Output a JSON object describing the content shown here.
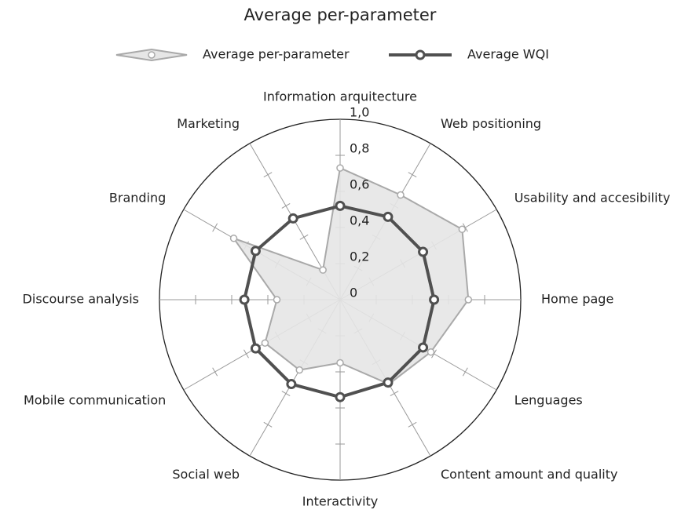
{
  "chart_data": {
    "type": "radar",
    "title": "Average per-parameter",
    "categories": [
      "Information arquitecture",
      "Web positioning",
      "Usability and accesibility",
      "Home page",
      "Lenguages",
      "Content amount and quality",
      "Interactivity",
      "Social web",
      "Mobile communication",
      "Discourse analysis",
      "Branding",
      "Marketing"
    ],
    "series": [
      {
        "name": "Average per-parameter",
        "color": "#a9a9a9",
        "fill": "#e6e6e6",
        "values": [
          0.73,
          0.67,
          0.78,
          0.71,
          0.58,
          0.54,
          0.35,
          0.45,
          0.48,
          0.35,
          0.68,
          0.19
        ]
      },
      {
        "name": "Average WQI",
        "color": "#505050",
        "values": [
          0.52,
          0.53,
          0.53,
          0.52,
          0.53,
          0.53,
          0.54,
          0.54,
          0.54,
          0.53,
          0.54,
          0.52
        ]
      }
    ],
    "ylim": [
      0,
      1
    ],
    "yticks": [
      0,
      {
        "value": 0.2,
        "label": "0,2"
      },
      {
        "value": 0.4,
        "label": "0,4"
      },
      {
        "value": 0.6,
        "label": "0,6"
      },
      {
        "value": 0.8,
        "label": "0,8"
      },
      {
        "value": 1,
        "label": "1,0"
      }
    ],
    "legend": "top"
  }
}
